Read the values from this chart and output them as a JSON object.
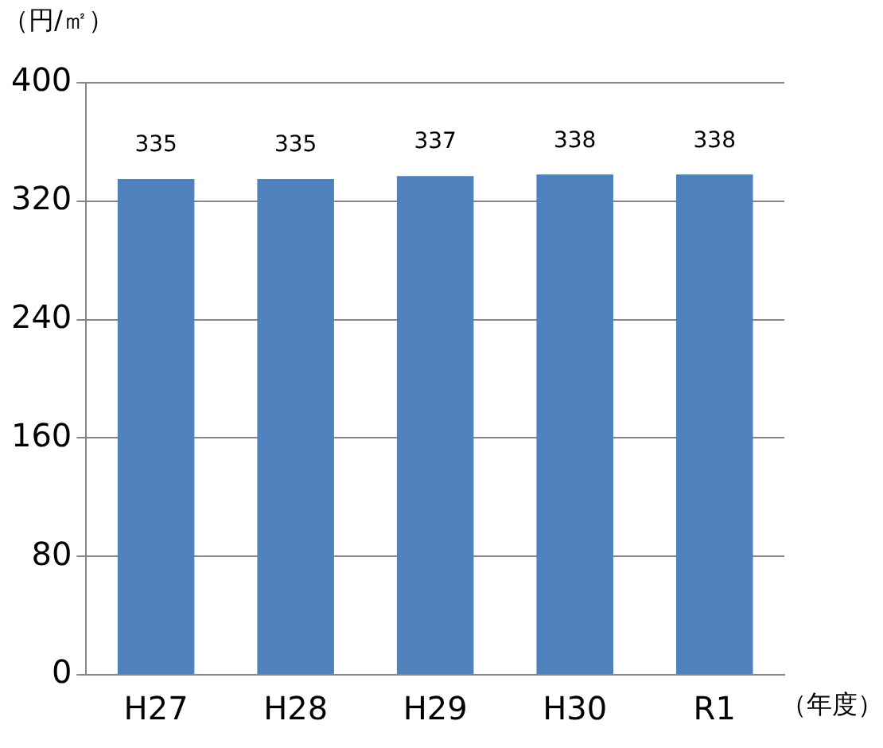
{
  "chart_data": {
    "type": "bar",
    "xlabel": "（年度）",
    "ylabel": "（円/㎡）",
    "categories": [
      "H27",
      "H28",
      "H29",
      "H30",
      "R1"
    ],
    "values": [
      335,
      335,
      337,
      338,
      338
    ],
    "color": "#4f81bd",
    "ylim": [
      0,
      400
    ],
    "yticks": [
      0,
      80,
      160,
      240,
      320,
      400
    ],
    "grid": "y",
    "legend": false,
    "data_labels": true
  }
}
